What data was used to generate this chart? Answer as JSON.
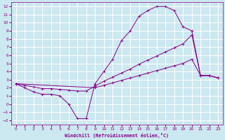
{
  "xlabel": "Windchill (Refroidissement éolien,°C)",
  "bg_color": "#cce8f0",
  "grid_color": "#ffffff",
  "line_color": "#880088",
  "curve1_x": [
    0,
    1,
    2,
    3,
    4,
    5,
    6,
    7,
    8,
    9,
    10,
    11,
    12,
    13,
    14,
    15,
    16,
    17,
    18,
    19,
    20,
    21,
    22,
    23
  ],
  "curve1_y": [
    2.5,
    2.0,
    1.5,
    1.2,
    1.2,
    1.0,
    0.0,
    -1.8,
    -1.8,
    2.5,
    4.0,
    5.5,
    7.8,
    9.0,
    10.8,
    11.5,
    12.0,
    12.0,
    11.5,
    9.5,
    9.0,
    3.5,
    3.5,
    3.2
  ],
  "curve2_x": [
    0,
    1,
    2,
    3,
    4,
    5,
    6,
    7,
    8,
    9,
    10,
    11,
    12,
    13,
    14,
    15,
    16,
    17,
    18,
    19,
    20,
    21,
    22,
    23
  ],
  "curve2_y": [
    2.5,
    2.3,
    2.1,
    1.9,
    1.9,
    1.8,
    1.7,
    1.6,
    1.6,
    2.2,
    2.8,
    3.3,
    3.8,
    4.3,
    4.9,
    5.4,
    5.9,
    6.4,
    6.9,
    7.4,
    8.5,
    3.5,
    3.5,
    3.2
  ],
  "curve3_x": [
    0,
    9,
    10,
    11,
    12,
    13,
    14,
    15,
    16,
    17,
    18,
    19,
    20,
    21,
    22,
    23
  ],
  "curve3_y": [
    2.5,
    2.0,
    2.3,
    2.6,
    2.9,
    3.2,
    3.5,
    3.8,
    4.1,
    4.4,
    4.7,
    5.0,
    5.5,
    3.5,
    3.5,
    3.2
  ],
  "xlim": [
    -0.5,
    23.5
  ],
  "ylim": [
    -2.5,
    12.5
  ],
  "yticks": [
    -2,
    -1,
    0,
    1,
    2,
    3,
    4,
    5,
    6,
    7,
    8,
    9,
    10,
    11,
    12
  ],
  "xticks": [
    0,
    1,
    2,
    3,
    4,
    5,
    6,
    7,
    8,
    9,
    10,
    11,
    12,
    13,
    14,
    15,
    16,
    17,
    18,
    19,
    20,
    21,
    22,
    23
  ]
}
